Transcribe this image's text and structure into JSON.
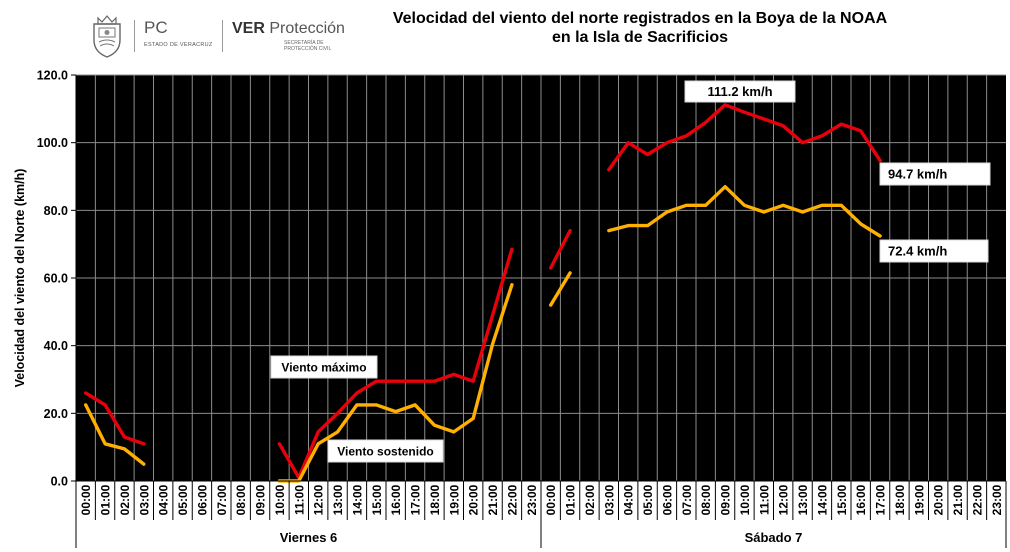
{
  "header": {
    "pc_title": "PC",
    "pc_subtitle": "ESTADO DE VERACRUZ",
    "ver_bold": "VER",
    "ver_title": "Protección",
    "ver_subtitle": "SECRETARÍA DE PROTECCIÓN CIVIL"
  },
  "chart_data": {
    "type": "line",
    "title": "Velocidad del viento del norte registrados en la Boya de la NOAA en la Isla de Sacrificios",
    "title_lines": [
      "Velocidad del viento del norte registrados en la Boya de la NOAA",
      "en la Isla de Sacrificios"
    ],
    "ylabel": "Velocidad del viento del Norte (km/h)",
    "ylim": [
      0,
      120
    ],
    "yticks": [
      "0.0",
      "20.0",
      "40.0",
      "60.0",
      "80.0",
      "100.0",
      "120.0"
    ],
    "hours": [
      "00:00",
      "01:00",
      "02:00",
      "03:00",
      "04:00",
      "05:00",
      "06:00",
      "07:00",
      "08:00",
      "09:00",
      "10:00",
      "11:00",
      "12:00",
      "13:00",
      "14:00",
      "15:00",
      "16:00",
      "17:00",
      "18:00",
      "19:00",
      "20:00",
      "21:00",
      "22:00",
      "23:00"
    ],
    "days": [
      "Viernes 6",
      "Sábado 7"
    ],
    "grid": true,
    "series": [
      {
        "name": "Viento máximo",
        "color": "#e8000b",
        "values": [
          26,
          22.5,
          13,
          11,
          null,
          null,
          null,
          null,
          null,
          null,
          11,
          1,
          14.5,
          20,
          26,
          29.5,
          29.5,
          29.5,
          29.5,
          31.5,
          29.5,
          49,
          68.5,
          null,
          63,
          74,
          null,
          92,
          100,
          96.5,
          100,
          102,
          106,
          111.2,
          109,
          107,
          105,
          100,
          102,
          105.5,
          103.5,
          94.7,
          null,
          null,
          null,
          null,
          null,
          null
        ]
      },
      {
        "name": "Viento sostenido",
        "color": "#ffb000",
        "values": [
          22.5,
          11,
          9.5,
          5,
          null,
          null,
          null,
          null,
          null,
          null,
          0,
          0,
          11,
          14.5,
          22.5,
          22.5,
          20.5,
          22.5,
          16.5,
          14.5,
          18.5,
          40.5,
          58,
          null,
          52,
          61.5,
          null,
          74,
          75.5,
          75.5,
          79.5,
          81.5,
          81.5,
          87,
          81.5,
          79.5,
          81.5,
          79.5,
          81.5,
          81.5,
          76,
          72.4,
          null,
          null,
          null,
          null,
          null,
          null
        ]
      }
    ],
    "annotations": [
      {
        "text": "Viento máximo",
        "series": 0
      },
      {
        "text": "Viento sostenido",
        "series": 1
      },
      {
        "text": "111.2 km/h",
        "series": 0,
        "index": 33
      },
      {
        "text": "94.7 km/h",
        "series": 0,
        "index": 41
      },
      {
        "text": "72.4 km/h",
        "series": 1,
        "index": 41
      }
    ]
  }
}
